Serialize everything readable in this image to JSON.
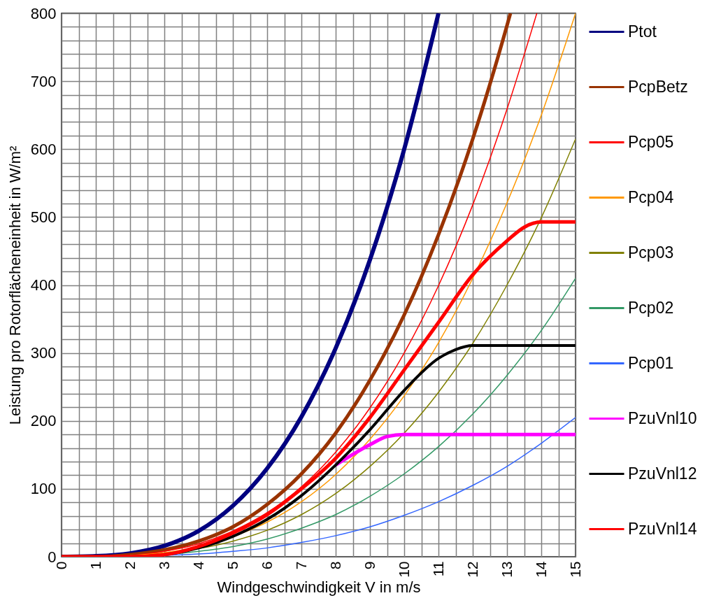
{
  "chart_data": {
    "type": "line",
    "xlabel": "Windgeschwindigkeit V in m/s",
    "ylabel": "Leistung pro Rotorflächeneinheit in W/m²",
    "xlim": [
      0,
      15
    ],
    "ylim": [
      0,
      800
    ],
    "xticks": [
      0,
      {
        "value": 0.5,
        "label": null
      },
      1,
      {
        "value": 1.5,
        "label": null
      },
      2,
      {
        "value": 2.5,
        "label": null
      },
      3,
      {
        "value": 3.5,
        "label": null
      },
      4,
      {
        "value": 4.5,
        "label": null
      },
      5,
      {
        "value": 5.5,
        "label": null
      },
      6,
      {
        "value": 6.5,
        "label": null
      },
      7,
      {
        "value": 7.5,
        "label": null
      },
      8,
      {
        "value": 8.5,
        "label": null
      },
      9,
      {
        "value": 9.5,
        "label": null
      },
      10,
      {
        "value": 10.5,
        "label": null
      },
      11,
      {
        "value": 11.5,
        "label": null
      },
      12,
      {
        "value": 12.5,
        "label": null
      },
      13,
      {
        "value": 13.5,
        "label": null
      },
      14,
      {
        "value": 14.5,
        "label": null
      },
      15
    ],
    "yticks": [
      0,
      {
        "value": 20,
        "label": null
      },
      {
        "value": 40,
        "label": null
      },
      {
        "value": 60,
        "label": null
      },
      {
        "value": 80,
        "label": null
      },
      100,
      {
        "value": 120,
        "label": null
      },
      {
        "value": 140,
        "label": null
      },
      {
        "value": 160,
        "label": null
      },
      {
        "value": 180,
        "label": null
      },
      200,
      {
        "value": 220,
        "label": null
      },
      {
        "value": 240,
        "label": null
      },
      {
        "value": 260,
        "label": null
      },
      {
        "value": 280,
        "label": null
      },
      300,
      {
        "value": 320,
        "label": null
      },
      {
        "value": 340,
        "label": null
      },
      {
        "value": 360,
        "label": null
      },
      {
        "value": 380,
        "label": null
      },
      400,
      {
        "value": 420,
        "label": null
      },
      {
        "value": 440,
        "label": null
      },
      {
        "value": 460,
        "label": null
      },
      {
        "value": 480,
        "label": null
      },
      500,
      {
        "value": 520,
        "label": null
      },
      {
        "value": 540,
        "label": null
      },
      {
        "value": 560,
        "label": null
      },
      {
        "value": 580,
        "label": null
      },
      600,
      {
        "value": 620,
        "label": null
      },
      {
        "value": 640,
        "label": null
      },
      {
        "value": 660,
        "label": null
      },
      {
        "value": 680,
        "label": null
      },
      700,
      {
        "value": 720,
        "label": null
      },
      {
        "value": 740,
        "label": null
      },
      {
        "value": 760,
        "label": null
      },
      {
        "value": 780,
        "label": null
      },
      800
    ],
    "grid": true,
    "legend": "right",
    "marker": "none",
    "line_style": "solid",
    "series": [
      {
        "name": "Ptot",
        "color": "#000080",
        "x": [
          0,
          1,
          2,
          3,
          4,
          5,
          6,
          7,
          8,
          9,
          10,
          11
        ],
        "values": [
          0,
          1,
          5,
          16,
          38,
          75,
          130,
          206,
          307,
          437,
          600,
          800
        ]
      },
      {
        "name": "PcpBetz",
        "color": "#993300",
        "x": [
          0,
          1,
          2,
          3,
          4,
          5,
          6,
          7,
          8,
          9,
          10,
          11,
          12,
          13,
          13.1
        ],
        "values": [
          0,
          0,
          3,
          10,
          23,
          44,
          77,
          122,
          182,
          260,
          356,
          474,
          615,
          782,
          800
        ]
      },
      {
        "name": "Pcp05",
        "color": "#ff0000",
        "x": [
          0,
          1,
          2,
          3,
          4,
          5,
          6,
          7,
          8,
          9,
          10,
          11,
          12,
          13,
          13.87
        ],
        "values": [
          0,
          0,
          2,
          8,
          19,
          38,
          65,
          103,
          154,
          219,
          300,
          399,
          518,
          659,
          800
        ]
      },
      {
        "name": "Pcp04",
        "color": "#ff9900",
        "x": [
          2,
          3,
          4,
          5,
          6,
          7,
          8,
          9,
          10,
          11,
          12,
          13,
          14,
          15
        ],
        "values": [
          2,
          6,
          15,
          30,
          51,
          81,
          121,
          173,
          237,
          315,
          410,
          521,
          650,
          800
        ]
      },
      {
        "name": "Pcp03",
        "color": "#808000",
        "x": [
          3,
          4,
          5,
          6,
          7,
          8,
          9,
          10,
          11,
          12,
          13,
          14,
          15
        ],
        "values": [
          5,
          12,
          23,
          39,
          62,
          93,
          133,
          182,
          242,
          314,
          400,
          499,
          615
        ]
      },
      {
        "name": "Pcp02",
        "color": "#339966",
        "x": [
          2,
          3,
          4,
          5,
          6,
          7,
          8,
          9,
          10,
          11,
          12,
          13,
          14,
          15
        ],
        "values": [
          1,
          3,
          8,
          15,
          26,
          42,
          62,
          89,
          122,
          162,
          210,
          267,
          333,
          410
        ]
      },
      {
        "name": "Pcp01",
        "color": "#3366ff",
        "x": [
          2,
          3,
          4,
          5,
          6,
          7,
          8,
          9,
          10,
          11,
          12,
          13,
          14,
          15
        ],
        "values": [
          1,
          2,
          4,
          8,
          13,
          21,
          31,
          44,
          61,
          81,
          105,
          133,
          167,
          205
        ]
      },
      {
        "name": "PzuVnl10",
        "color": "#ff00ff",
        "x": [
          8,
          9,
          9.5,
          10,
          11,
          12,
          13,
          14,
          15
        ],
        "values": [
          135,
          165,
          177,
          180,
          180,
          180,
          180,
          180,
          180
        ]
      },
      {
        "name": "PzuVnl12",
        "color": "#000000",
        "x": [
          0,
          1,
          2,
          3,
          4,
          5,
          6,
          7,
          8,
          9,
          10,
          11,
          11.5,
          12,
          13,
          14,
          15
        ],
        "values": [
          0,
          0,
          0,
          3,
          13,
          30,
          55,
          90,
          135,
          187,
          245,
          292,
          305,
          311,
          311,
          311,
          311
        ]
      },
      {
        "name": "PzuVnl14",
        "color": "#ff0000",
        "x": [
          0,
          1,
          2,
          3,
          4,
          5,
          6,
          7,
          8,
          9,
          10,
          11,
          12,
          13,
          13.5,
          14,
          15
        ],
        "values": [
          0,
          0,
          0,
          3,
          15,
          35,
          62,
          100,
          145,
          205,
          275,
          345,
          415,
          465,
          485,
          493,
          493
        ]
      }
    ]
  }
}
